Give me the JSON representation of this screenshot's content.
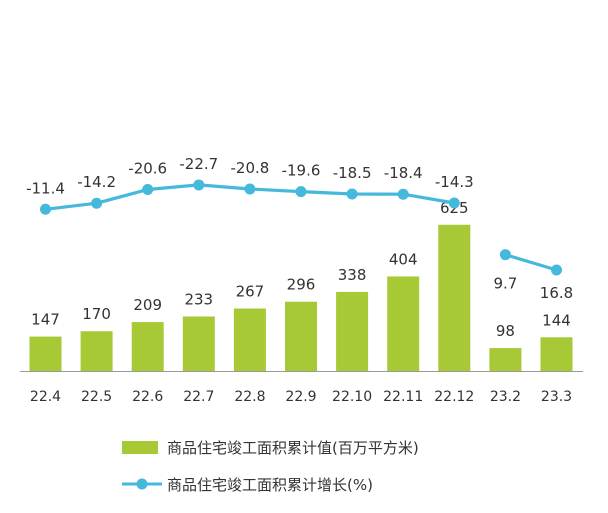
{
  "chart_data": {
    "type": "bar+line",
    "categories": [
      "22.4",
      "22.5",
      "22.6",
      "22.7",
      "22.8",
      "22.9",
      "22.10",
      "22.11",
      "22.12",
      "23.2",
      "23.3"
    ],
    "series": [
      {
        "name": "商品住宅竣工面积累计值(百万平方米)",
        "type": "bar",
        "values": [
          147,
          170,
          209,
          233,
          267,
          296,
          338,
          404,
          625,
          98,
          144
        ],
        "labels": [
          "147",
          "170",
          "209",
          "233",
          "267",
          "296",
          "338",
          "404",
          "625",
          "98",
          "144"
        ]
      },
      {
        "name": "商品住宅竣工面积累计增长(%)",
        "type": "line",
        "segments": [
          [
            0,
            8
          ],
          [
            9,
            10
          ]
        ],
        "values": [
          -11.4,
          -14.2,
          -20.6,
          -22.7,
          -20.8,
          -19.6,
          -18.5,
          -18.4,
          -14.3,
          9.7,
          16.8
        ],
        "labels": [
          "-11.4",
          "-14.2",
          "-20.6",
          "-22.7",
          "-20.8",
          "-19.6",
          "-18.5",
          "-18.4",
          "-14.3",
          "9.7",
          "16.8"
        ]
      }
    ],
    "legend": {
      "position": "bottom",
      "items": [
        {
          "label": "商品住宅竣工面积累计值(百万平方米)",
          "symbol": "bar"
        },
        {
          "label": "商品住宅竣工面积累计增长(%)",
          "symbol": "line-marker"
        }
      ]
    },
    "colors": {
      "bar": "#a6c935",
      "line": "#45b9dc",
      "axis": "#9a9a9a",
      "text": "#333333"
    }
  }
}
